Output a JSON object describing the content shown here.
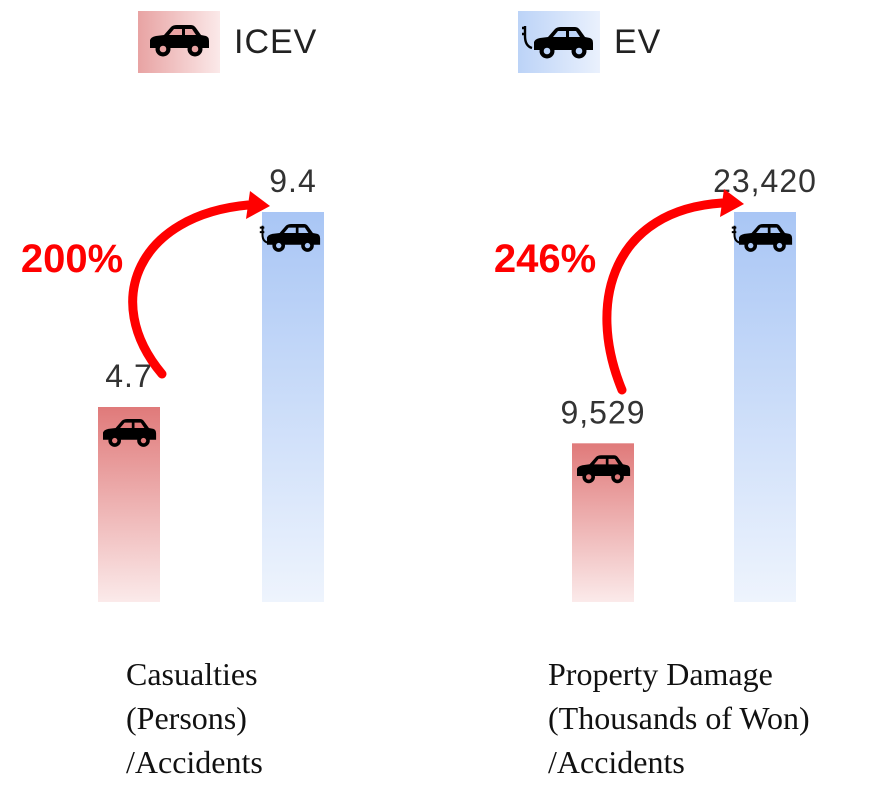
{
  "legend": {
    "icev": {
      "label": "ICEV",
      "icon": "car-icon",
      "color": "#e8a3a3"
    },
    "ev": {
      "label": "EV",
      "icon": "electric-car-icon",
      "color": "#bcd3f7"
    }
  },
  "chart_data": [
    {
      "type": "bar",
      "categories": [
        "ICEV",
        "EV"
      ],
      "values": [
        4.7,
        9.4
      ],
      "value_labels": [
        "4.7",
        "9.4"
      ],
      "increase_label": "200%",
      "caption": [
        "Casualties",
        "(Persons)",
        "/Accidents"
      ]
    },
    {
      "type": "bar",
      "categories": [
        "ICEV",
        "EV"
      ],
      "values": [
        9529,
        23420
      ],
      "value_labels": [
        "9,529",
        "23,420"
      ],
      "increase_label": "246%",
      "caption": [
        "Property Damage",
        "(Thousands of Won)",
        "/Accidents"
      ]
    }
  ],
  "colors": {
    "icev_top": "#e07a7a",
    "icev_bottom": "#fbeaea",
    "ev_top": "#a9c6f5",
    "ev_bottom": "#eef4fd",
    "arrow": "#ff0000",
    "value_text": "#333333"
  }
}
